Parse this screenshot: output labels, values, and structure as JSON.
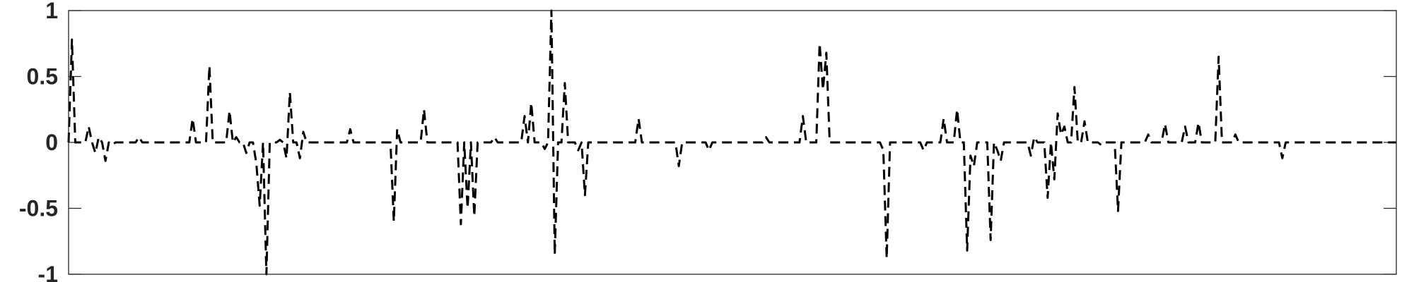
{
  "chart_data": {
    "type": "line",
    "title": "",
    "xlabel": "",
    "ylabel": "",
    "ylim": [
      -1,
      1
    ],
    "xlim": [
      0,
      400
    ],
    "grid": false,
    "yticks": [
      1,
      0.5,
      0,
      -0.5,
      -1
    ],
    "ytick_labels": [
      "1",
      "0.5",
      "0",
      "-0.5",
      "-1"
    ],
    "xticks": [],
    "line_color": "#000000",
    "line_style": "dashed",
    "series": [
      {
        "values": [
          0,
          0.78,
          0,
          0,
          0,
          0,
          0.12,
          0,
          -0.08,
          0.04,
          0,
          -0.14,
          0,
          -0.02,
          0,
          0,
          0,
          0,
          0,
          0,
          0,
          0.04,
          0,
          0,
          0,
          0,
          0,
          0,
          0,
          0,
          0,
          0,
          0,
          0,
          0,
          0,
          0,
          0.18,
          0,
          0,
          0,
          0,
          0.58,
          0,
          0,
          0,
          0,
          0,
          0.24,
          0,
          0.04,
          0,
          0,
          -0.08,
          0,
          0,
          -0.16,
          -0.48,
          0,
          -1.0,
          0,
          0,
          0,
          0.02,
          0,
          -0.12,
          0.38,
          0,
          0,
          -0.12,
          0.08,
          0,
          0,
          0,
          0,
          0,
          0,
          0,
          0,
          0,
          0,
          0,
          0,
          0,
          0.1,
          0,
          0,
          0,
          0,
          0,
          0,
          0,
          0,
          0,
          0,
          0,
          0,
          -0.6,
          0.1,
          0,
          0,
          0,
          0,
          0,
          0,
          0,
          0.25,
          0,
          0,
          0,
          0,
          0,
          0,
          0,
          0,
          0,
          0,
          -0.62,
          0,
          -0.5,
          0,
          -0.56,
          0,
          0,
          0,
          0,
          0,
          0.04,
          0,
          0,
          0,
          0,
          0,
          0,
          0,
          0,
          0.2,
          0,
          0.3,
          0,
          0,
          0,
          -0.05,
          0,
          1.0,
          -0.85,
          0,
          0,
          0.45,
          0,
          0,
          0,
          -0.06,
          0,
          -0.4,
          0,
          0,
          0,
          0,
          0,
          0,
          0,
          0,
          0,
          0,
          0,
          0,
          0,
          0,
          0,
          0.18,
          0,
          0,
          0,
          0,
          0,
          0,
          0,
          0,
          0,
          0,
          0,
          -0.18,
          0,
          0,
          0,
          0,
          0,
          0,
          0,
          0,
          -0.06,
          0,
          0,
          0,
          0,
          0,
          0,
          0,
          0,
          0,
          0,
          0,
          0,
          0,
          0,
          0,
          0,
          0.04,
          0,
          0,
          0,
          0,
          0,
          0,
          0,
          0,
          0,
          0,
          0.2,
          0,
          0,
          0,
          0,
          0.75,
          0.4,
          0.68,
          0,
          0,
          0,
          0,
          0,
          0,
          0,
          0,
          0,
          0,
          0,
          0,
          0,
          0,
          0,
          0,
          -0.06,
          -0.88,
          0,
          0,
          0,
          0,
          0,
          0,
          0,
          0,
          0,
          0,
          -0.06,
          0,
          0,
          0,
          0,
          0,
          0.18,
          0,
          0,
          0,
          0.25,
          0,
          0,
          -0.82,
          -0.1,
          -0.18,
          0,
          0,
          0,
          0,
          -0.74,
          0,
          -0.06,
          -0.14,
          0,
          0,
          0,
          0,
          0,
          0,
          0,
          0,
          -0.1,
          0.04,
          0,
          0,
          0,
          -0.42,
          0,
          -0.28,
          0.22,
          0.06,
          0.12,
          0,
          0,
          0.42,
          0,
          0,
          0.16,
          0,
          0,
          0,
          0,
          -0.02,
          0,
          0,
          0,
          0,
          -0.52,
          0,
          0,
          0,
          0,
          0,
          0,
          0,
          0,
          0.06,
          0,
          0,
          0,
          0,
          0.14,
          0,
          0,
          0,
          0,
          0,
          0.12,
          0,
          0,
          0,
          0.15,
          0,
          0,
          0,
          0,
          0,
          0.65,
          0,
          0,
          0,
          0,
          0.06,
          0,
          0,
          0,
          0,
          0,
          0,
          0,
          0,
          0,
          0,
          0,
          0,
          0,
          -0.12,
          0,
          0,
          0,
          0,
          0,
          0,
          0,
          0,
          0,
          0,
          0,
          0,
          0,
          0,
          0,
          0,
          0,
          0,
          0,
          0,
          0,
          0,
          0,
          0,
          0,
          0,
          0,
          0,
          0,
          0,
          0,
          0,
          0,
          0
        ]
      }
    ]
  }
}
